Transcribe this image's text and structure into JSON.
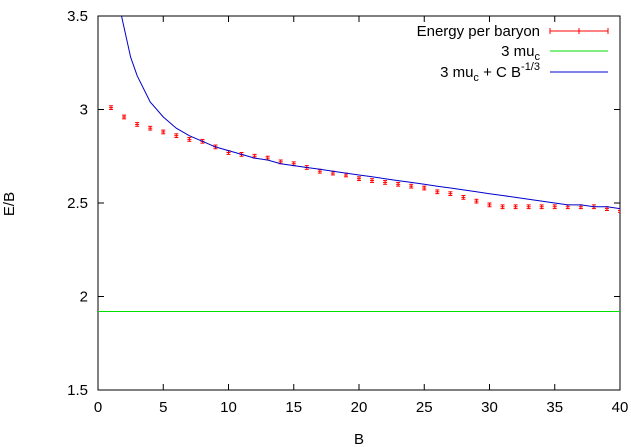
{
  "chart_data": {
    "type": "scatter",
    "title": "",
    "xlabel": "B",
    "ylabel": "E/B",
    "xlim": [
      0,
      40
    ],
    "ylim": [
      1.5,
      3.5
    ],
    "x_ticks": [
      0,
      5,
      10,
      15,
      20,
      25,
      30,
      35,
      40
    ],
    "y_ticks": [
      1.5,
      2,
      2.5,
      3,
      3.5
    ],
    "x_tick_labels": [
      "0",
      "5",
      "10",
      "15",
      "20",
      "25",
      "30",
      "35",
      "40"
    ],
    "y_tick_labels": [
      "1.5",
      "2",
      "2.5",
      "3",
      "3.5"
    ],
    "grid": false,
    "legend_position": "top-right",
    "series": [
      {
        "name": "Energy per baryon",
        "kind": "points-with-errorbars",
        "color": "#ff0000",
        "x": [
          1,
          2,
          3,
          4,
          5,
          6,
          7,
          8,
          9,
          10,
          11,
          12,
          13,
          14,
          15,
          16,
          17,
          18,
          19,
          20,
          21,
          22,
          23,
          24,
          25,
          26,
          27,
          28,
          29,
          30,
          31,
          32,
          33,
          34,
          35,
          36,
          37,
          38,
          39,
          40
        ],
        "y": [
          3.01,
          2.96,
          2.92,
          2.9,
          2.88,
          2.86,
          2.84,
          2.83,
          2.8,
          2.77,
          2.76,
          2.75,
          2.74,
          2.72,
          2.71,
          2.69,
          2.67,
          2.66,
          2.65,
          2.63,
          2.62,
          2.61,
          2.6,
          2.59,
          2.58,
          2.56,
          2.55,
          2.53,
          2.51,
          2.49,
          2.48,
          2.48,
          2.48,
          2.48,
          2.48,
          2.48,
          2.48,
          2.48,
          2.47,
          2.46
        ],
        "err": [
          0.01,
          0.01,
          0.01,
          0.01,
          0.01,
          0.01,
          0.01,
          0.01,
          0.01,
          0.01,
          0.01,
          0.01,
          0.01,
          0.01,
          0.01,
          0.01,
          0.01,
          0.01,
          0.01,
          0.01,
          0.01,
          0.01,
          0.01,
          0.01,
          0.01,
          0.01,
          0.01,
          0.01,
          0.01,
          0.01,
          0.01,
          0.01,
          0.01,
          0.01,
          0.01,
          0.01,
          0.01,
          0.01,
          0.01,
          0.01
        ]
      },
      {
        "name": "3 mu_c",
        "name_base": "3 mu",
        "name_sub": "c",
        "kind": "line",
        "color": "#00dd00",
        "x": [
          0,
          40
        ],
        "y": [
          1.92,
          1.92
        ]
      },
      {
        "name": "3 mu_c + C B^-1/3",
        "name_base": "3 mu",
        "name_sub": "c",
        "name_mid": " + C B",
        "name_sup": "-1/3",
        "kind": "line",
        "color": "#0000cc",
        "function": "3*mu_c + C*B^(-1/3)",
        "x": [
          1.8,
          2.5,
          3,
          4,
          5,
          6,
          7,
          8,
          9,
          10,
          11,
          12,
          13,
          14,
          15,
          16,
          17,
          18,
          19,
          20,
          21,
          22,
          23,
          24,
          25,
          26,
          27,
          28,
          29,
          30,
          31,
          32,
          33,
          34,
          35,
          36,
          37,
          38,
          39,
          40
        ],
        "y": [
          3.5,
          3.28,
          3.18,
          3.04,
          2.96,
          2.9,
          2.86,
          2.83,
          2.8,
          2.78,
          2.76,
          2.74,
          2.73,
          2.71,
          2.7,
          2.69,
          2.68,
          2.67,
          2.66,
          2.65,
          2.64,
          2.63,
          2.62,
          2.61,
          2.6,
          2.59,
          2.58,
          2.57,
          2.56,
          2.55,
          2.54,
          2.53,
          2.52,
          2.51,
          2.5,
          2.49,
          2.49,
          2.48,
          2.48,
          2.47
        ]
      }
    ]
  }
}
